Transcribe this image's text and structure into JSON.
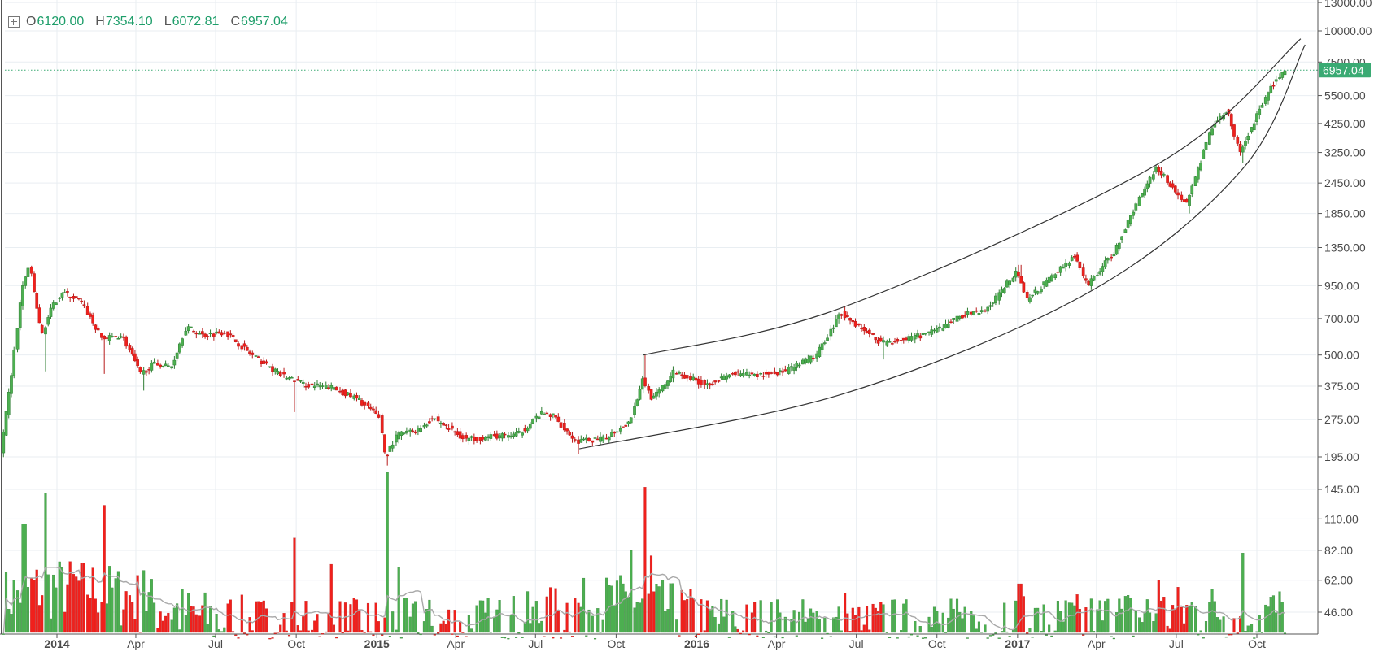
{
  "legend": {
    "open_label": "O",
    "open": "6120.00",
    "high_label": "H",
    "high": "7354.10",
    "low_label": "L",
    "low": "6072.81",
    "close_label": "C",
    "close": "6957.04"
  },
  "price_badge": "6957.04",
  "colors": {
    "up": "#4caf50",
    "down": "#f0201c",
    "grid": "#e9eef2",
    "channel": "#333333",
    "volume_ma": "#a9a9a9",
    "badge": "#3aaa73"
  },
  "chart_data": {
    "type": "candlestick",
    "y_scale": "log",
    "y_ticks": [
      "13000.00",
      "10000.00",
      "7500.00",
      "5500.00",
      "4250.00",
      "3250.00",
      "2450.00",
      "1850.00",
      "1350.00",
      "950.00",
      "700.00",
      "500.00",
      "375.00",
      "275.00",
      "195.00",
      "145.00",
      "110.00",
      "82.00",
      "62.00",
      "46.00"
    ],
    "x_ticks": [
      {
        "label": "2014",
        "date": "2014-01",
        "year": true
      },
      {
        "label": "Apr",
        "date": "2014-04",
        "year": false
      },
      {
        "label": "Jul",
        "date": "2014-07",
        "year": false
      },
      {
        "label": "Oct",
        "date": "2014-10",
        "year": false
      },
      {
        "label": "2015",
        "date": "2015-01",
        "year": true
      },
      {
        "label": "Apr",
        "date": "2015-04",
        "year": false
      },
      {
        "label": "Jul",
        "date": "2015-07",
        "year": false
      },
      {
        "label": "Oct",
        "date": "2015-10",
        "year": false
      },
      {
        "label": "2016",
        "date": "2016-01",
        "year": true
      },
      {
        "label": "Apr",
        "date": "2016-04",
        "year": false
      },
      {
        "label": "Jul",
        "date": "2016-07",
        "year": false
      },
      {
        "label": "Oct",
        "date": "2016-10",
        "year": false
      },
      {
        "label": "2017",
        "date": "2017-01",
        "year": true
      },
      {
        "label": "Apr",
        "date": "2017-04",
        "year": false
      },
      {
        "label": "Jul",
        "date": "2017-07",
        "year": false
      },
      {
        "label": "Oct",
        "date": "2017-10",
        "year": false
      }
    ],
    "price_path": [
      [
        "2013-11-01",
        200
      ],
      [
        "2013-11-15",
        450
      ],
      [
        "2013-11-25",
        900
      ],
      [
        "2013-12-04",
        1150
      ],
      [
        "2013-12-18",
        600
      ],
      [
        "2013-12-28",
        750
      ],
      [
        "2014-01-10",
        900
      ],
      [
        "2014-02-01",
        820
      ],
      [
        "2014-02-25",
        580
      ],
      [
        "2014-03-20",
        600
      ],
      [
        "2014-04-10",
        420
      ],
      [
        "2014-04-25",
        460
      ],
      [
        "2014-05-15",
        450
      ],
      [
        "2014-06-01",
        650
      ],
      [
        "2014-06-20",
        600
      ],
      [
        "2014-07-15",
        620
      ],
      [
        "2014-08-15",
        500
      ],
      [
        "2014-09-15",
        420
      ],
      [
        "2014-10-15",
        380
      ],
      [
        "2014-11-15",
        370
      ],
      [
        "2014-12-15",
        330
      ],
      [
        "2015-01-08",
        280
      ],
      [
        "2015-01-14",
        195
      ],
      [
        "2015-01-28",
        240
      ],
      [
        "2015-02-20",
        250
      ],
      [
        "2015-03-10",
        280
      ],
      [
        "2015-04-15",
        230
      ],
      [
        "2015-05-15",
        235
      ],
      [
        "2015-06-15",
        240
      ],
      [
        "2015-07-10",
        290
      ],
      [
        "2015-07-25",
        285
      ],
      [
        "2015-08-20",
        225
      ],
      [
        "2015-09-20",
        230
      ],
      [
        "2015-10-20",
        270
      ],
      [
        "2015-11-04",
        400
      ],
      [
        "2015-11-15",
        330
      ],
      [
        "2015-12-10",
        430
      ],
      [
        "2016-01-15",
        380
      ],
      [
        "2016-02-15",
        420
      ],
      [
        "2016-03-15",
        415
      ],
      [
        "2016-04-15",
        430
      ],
      [
        "2016-05-20",
        500
      ],
      [
        "2016-06-17",
        740
      ],
      [
        "2016-07-05",
        660
      ],
      [
        "2016-08-02",
        560
      ],
      [
        "2016-09-01",
        580
      ],
      [
        "2016-10-01",
        620
      ],
      [
        "2016-11-01",
        720
      ],
      [
        "2016-12-01",
        760
      ],
      [
        "2017-01-04",
        1100
      ],
      [
        "2017-01-15",
        830
      ],
      [
        "2017-02-15",
        1050
      ],
      [
        "2017-03-10",
        1250
      ],
      [
        "2017-03-25",
        950
      ],
      [
        "2017-04-25",
        1300
      ],
      [
        "2017-05-25",
        2200
      ],
      [
        "2017-06-12",
        2850
      ],
      [
        "2017-07-16",
        2000
      ],
      [
        "2017-08-15",
        4200
      ],
      [
        "2017-09-01",
        4800
      ],
      [
        "2017-09-15",
        3200
      ],
      [
        "2017-10-01",
        4300
      ],
      [
        "2017-10-20",
        5900
      ],
      [
        "2017-11-05",
        6957
      ]
    ],
    "spikes": [
      [
        "2013-12-18",
        430
      ],
      [
        "2014-02-25",
        420
      ],
      [
        "2014-04-10",
        360
      ],
      [
        "2014-10-01",
        295
      ],
      [
        "2015-01-14",
        180
      ],
      [
        "2015-08-20",
        200
      ],
      [
        "2015-11-04",
        500
      ],
      [
        "2016-06-17",
        780
      ],
      [
        "2016-08-02",
        480
      ],
      [
        "2017-01-04",
        1150
      ],
      [
        "2017-07-16",
        1850
      ],
      [
        "2017-09-15",
        2950
      ],
      [
        "2017-11-05",
        7354
      ]
    ],
    "volume_spikes": [
      [
        "2013-11-25",
        105
      ],
      [
        "2013-12-18",
        140
      ],
      [
        "2014-02-25",
        125
      ],
      [
        "2014-04-10",
        68
      ],
      [
        "2014-10-01",
        92
      ],
      [
        "2014-11-10",
        72
      ],
      [
        "2015-01-14",
        170
      ],
      [
        "2015-01-25",
        70
      ],
      [
        "2015-10-20",
        82
      ],
      [
        "2015-11-04",
        148
      ],
      [
        "2015-11-10",
        78
      ],
      [
        "2016-06-17",
        55
      ],
      [
        "2017-01-04",
        60
      ],
      [
        "2017-06-12",
        62
      ],
      [
        "2017-09-15",
        80
      ]
    ],
    "channel": {
      "upper": [
        [
          "2015-11-01",
          500
        ],
        [
          "2016-06-17",
          780
        ],
        [
          "2017-06-12",
          2950
        ],
        [
          "2017-11-20",
          9300
        ]
      ],
      "lower": [
        [
          "2015-08-20",
          210
        ],
        [
          "2016-06-17",
          350
        ],
        [
          "2017-03-25",
          900
        ],
        [
          "2017-09-15",
          2800
        ],
        [
          "2017-11-25",
          8800
        ]
      ]
    }
  }
}
